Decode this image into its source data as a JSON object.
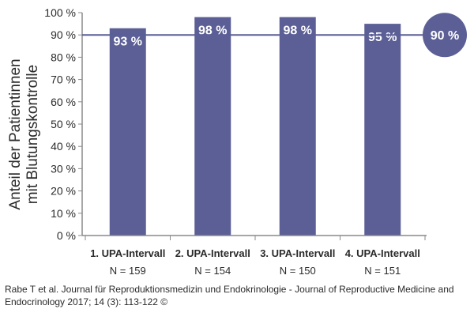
{
  "chart_data": {
    "type": "bar",
    "categories": [
      "1. UPA-Intervall",
      "2. UPA-Intervall",
      "3. UPA-Intervall",
      "4. UPA-Intervall"
    ],
    "sample_sizes": [
      "N = 159",
      "N = 154",
      "N = 150",
      "N = 151"
    ],
    "values": [
      93,
      98,
      98,
      95
    ],
    "value_labels": [
      "93 %",
      "98 %",
      "98 %",
      "95 %"
    ],
    "ylabel_line1": "Anteil der Patientinnen",
    "ylabel_line2": "mit Blutungskontrolle",
    "ylim": [
      0,
      100
    ],
    "yticks": [
      0,
      10,
      20,
      30,
      40,
      50,
      60,
      70,
      80,
      90,
      100
    ],
    "ytick_labels": [
      "0 %",
      "10 %",
      "20 %",
      "30 %",
      "40 %",
      "50 %",
      "60 %",
      "70 %",
      "80 %",
      "90 %",
      "100 %"
    ],
    "reference_line": {
      "value": 90,
      "label": "90 %"
    },
    "grid": false,
    "colors": {
      "bar": "#5b5f96",
      "reference_line": "#5b5f96",
      "reference_badge": "#5b5f96",
      "axis": "#8a8a8a",
      "text": "#2a2a2a",
      "bar_label": "#ffffff"
    }
  },
  "caption": "Rabe T et al. Journal für Reproduktionsmedizin und Endokrinologie - Journal of Reproductive Medicine and Endocrinology 2017; 14 (3): 113-122 ©"
}
